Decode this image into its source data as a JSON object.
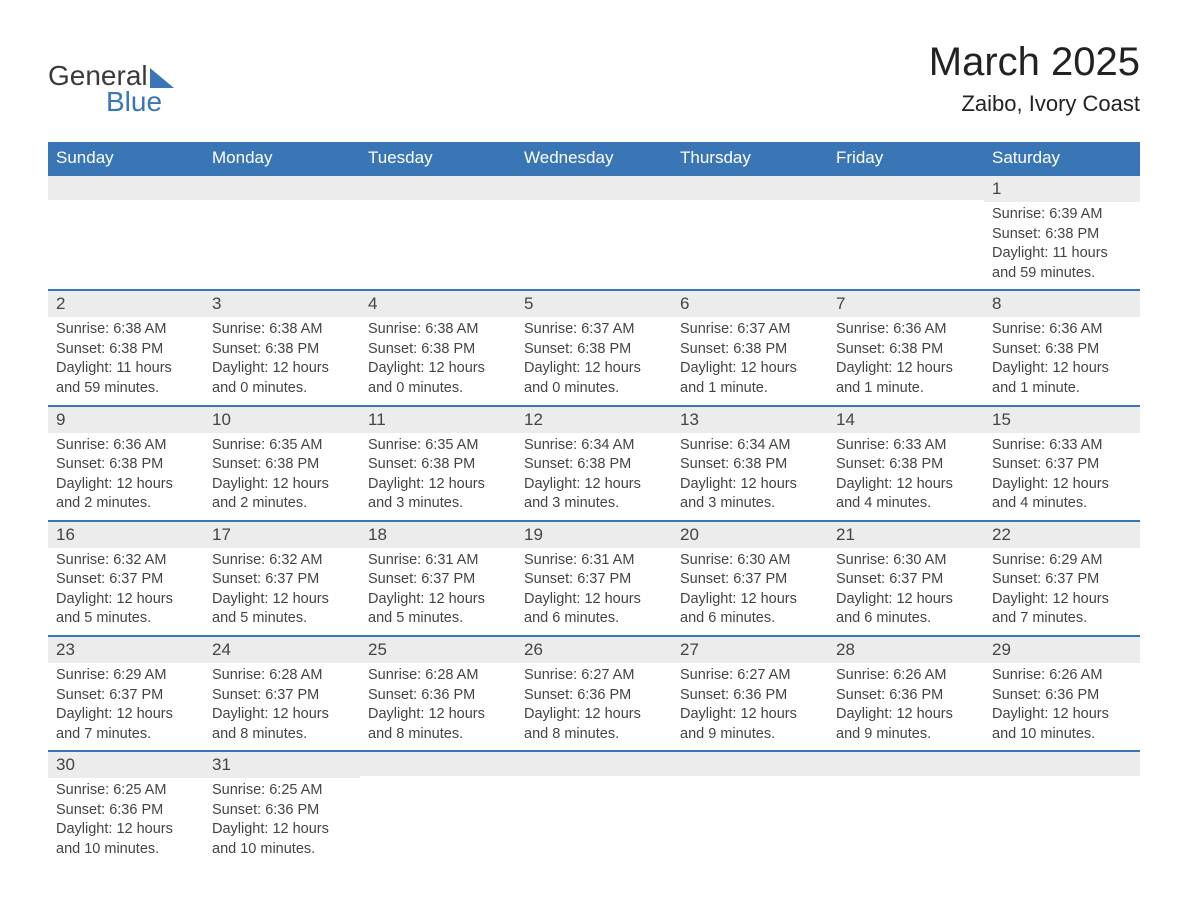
{
  "logo": {
    "text1": "General",
    "text2": "Blue",
    "accent_color": "#3a76b5"
  },
  "title": "March 2025",
  "location": "Zaibo, Ivory Coast",
  "colors": {
    "header_bg": "#3a76b5",
    "header_fg": "#ffffff",
    "daynum_bg": "#ececec",
    "row_divider": "#3a76b5",
    "text": "#444444",
    "background": "#ffffff"
  },
  "fonts": {
    "title_pt": 40,
    "location_pt": 22,
    "dayhead_pt": 17,
    "daynum_pt": 17,
    "body_pt": 14.5
  },
  "day_headers": [
    "Sunday",
    "Monday",
    "Tuesday",
    "Wednesday",
    "Thursday",
    "Friday",
    "Saturday"
  ],
  "weeks": [
    [
      {
        "blank": true
      },
      {
        "blank": true
      },
      {
        "blank": true
      },
      {
        "blank": true
      },
      {
        "blank": true
      },
      {
        "blank": true
      },
      {
        "num": "1",
        "sunrise": "Sunrise: 6:39 AM",
        "sunset": "Sunset: 6:38 PM",
        "daylight": "Daylight: 11 hours and 59 minutes."
      }
    ],
    [
      {
        "num": "2",
        "sunrise": "Sunrise: 6:38 AM",
        "sunset": "Sunset: 6:38 PM",
        "daylight": "Daylight: 11 hours and 59 minutes."
      },
      {
        "num": "3",
        "sunrise": "Sunrise: 6:38 AM",
        "sunset": "Sunset: 6:38 PM",
        "daylight": "Daylight: 12 hours and 0 minutes."
      },
      {
        "num": "4",
        "sunrise": "Sunrise: 6:38 AM",
        "sunset": "Sunset: 6:38 PM",
        "daylight": "Daylight: 12 hours and 0 minutes."
      },
      {
        "num": "5",
        "sunrise": "Sunrise: 6:37 AM",
        "sunset": "Sunset: 6:38 PM",
        "daylight": "Daylight: 12 hours and 0 minutes."
      },
      {
        "num": "6",
        "sunrise": "Sunrise: 6:37 AM",
        "sunset": "Sunset: 6:38 PM",
        "daylight": "Daylight: 12 hours and 1 minute."
      },
      {
        "num": "7",
        "sunrise": "Sunrise: 6:36 AM",
        "sunset": "Sunset: 6:38 PM",
        "daylight": "Daylight: 12 hours and 1 minute."
      },
      {
        "num": "8",
        "sunrise": "Sunrise: 6:36 AM",
        "sunset": "Sunset: 6:38 PM",
        "daylight": "Daylight: 12 hours and 1 minute."
      }
    ],
    [
      {
        "num": "9",
        "sunrise": "Sunrise: 6:36 AM",
        "sunset": "Sunset: 6:38 PM",
        "daylight": "Daylight: 12 hours and 2 minutes."
      },
      {
        "num": "10",
        "sunrise": "Sunrise: 6:35 AM",
        "sunset": "Sunset: 6:38 PM",
        "daylight": "Daylight: 12 hours and 2 minutes."
      },
      {
        "num": "11",
        "sunrise": "Sunrise: 6:35 AM",
        "sunset": "Sunset: 6:38 PM",
        "daylight": "Daylight: 12 hours and 3 minutes."
      },
      {
        "num": "12",
        "sunrise": "Sunrise: 6:34 AM",
        "sunset": "Sunset: 6:38 PM",
        "daylight": "Daylight: 12 hours and 3 minutes."
      },
      {
        "num": "13",
        "sunrise": "Sunrise: 6:34 AM",
        "sunset": "Sunset: 6:38 PM",
        "daylight": "Daylight: 12 hours and 3 minutes."
      },
      {
        "num": "14",
        "sunrise": "Sunrise: 6:33 AM",
        "sunset": "Sunset: 6:38 PM",
        "daylight": "Daylight: 12 hours and 4 minutes."
      },
      {
        "num": "15",
        "sunrise": "Sunrise: 6:33 AM",
        "sunset": "Sunset: 6:37 PM",
        "daylight": "Daylight: 12 hours and 4 minutes."
      }
    ],
    [
      {
        "num": "16",
        "sunrise": "Sunrise: 6:32 AM",
        "sunset": "Sunset: 6:37 PM",
        "daylight": "Daylight: 12 hours and 5 minutes."
      },
      {
        "num": "17",
        "sunrise": "Sunrise: 6:32 AM",
        "sunset": "Sunset: 6:37 PM",
        "daylight": "Daylight: 12 hours and 5 minutes."
      },
      {
        "num": "18",
        "sunrise": "Sunrise: 6:31 AM",
        "sunset": "Sunset: 6:37 PM",
        "daylight": "Daylight: 12 hours and 5 minutes."
      },
      {
        "num": "19",
        "sunrise": "Sunrise: 6:31 AM",
        "sunset": "Sunset: 6:37 PM",
        "daylight": "Daylight: 12 hours and 6 minutes."
      },
      {
        "num": "20",
        "sunrise": "Sunrise: 6:30 AM",
        "sunset": "Sunset: 6:37 PM",
        "daylight": "Daylight: 12 hours and 6 minutes."
      },
      {
        "num": "21",
        "sunrise": "Sunrise: 6:30 AM",
        "sunset": "Sunset: 6:37 PM",
        "daylight": "Daylight: 12 hours and 6 minutes."
      },
      {
        "num": "22",
        "sunrise": "Sunrise: 6:29 AM",
        "sunset": "Sunset: 6:37 PM",
        "daylight": "Daylight: 12 hours and 7 minutes."
      }
    ],
    [
      {
        "num": "23",
        "sunrise": "Sunrise: 6:29 AM",
        "sunset": "Sunset: 6:37 PM",
        "daylight": "Daylight: 12 hours and 7 minutes."
      },
      {
        "num": "24",
        "sunrise": "Sunrise: 6:28 AM",
        "sunset": "Sunset: 6:37 PM",
        "daylight": "Daylight: 12 hours and 8 minutes."
      },
      {
        "num": "25",
        "sunrise": "Sunrise: 6:28 AM",
        "sunset": "Sunset: 6:36 PM",
        "daylight": "Daylight: 12 hours and 8 minutes."
      },
      {
        "num": "26",
        "sunrise": "Sunrise: 6:27 AM",
        "sunset": "Sunset: 6:36 PM",
        "daylight": "Daylight: 12 hours and 8 minutes."
      },
      {
        "num": "27",
        "sunrise": "Sunrise: 6:27 AM",
        "sunset": "Sunset: 6:36 PM",
        "daylight": "Daylight: 12 hours and 9 minutes."
      },
      {
        "num": "28",
        "sunrise": "Sunrise: 6:26 AM",
        "sunset": "Sunset: 6:36 PM",
        "daylight": "Daylight: 12 hours and 9 minutes."
      },
      {
        "num": "29",
        "sunrise": "Sunrise: 6:26 AM",
        "sunset": "Sunset: 6:36 PM",
        "daylight": "Daylight: 12 hours and 10 minutes."
      }
    ],
    [
      {
        "num": "30",
        "sunrise": "Sunrise: 6:25 AM",
        "sunset": "Sunset: 6:36 PM",
        "daylight": "Daylight: 12 hours and 10 minutes."
      },
      {
        "num": "31",
        "sunrise": "Sunrise: 6:25 AM",
        "sunset": "Sunset: 6:36 PM",
        "daylight": "Daylight: 12 hours and 10 minutes."
      },
      {
        "blank": true
      },
      {
        "blank": true
      },
      {
        "blank": true
      },
      {
        "blank": true
      },
      {
        "blank": true
      }
    ]
  ]
}
